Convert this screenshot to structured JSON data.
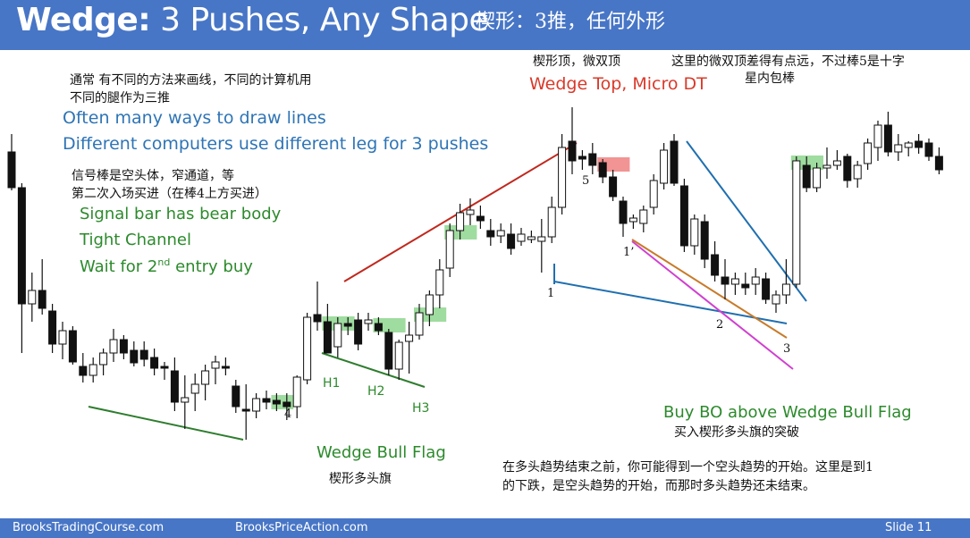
{
  "header": {
    "title_bold": "Wedge:",
    "title_rest": " 3 Pushes, Any Shape",
    "title_cn": "楔形：3推，任何外形"
  },
  "footer": {
    "left": "BrooksTradingCourse.com",
    "middle": "BrooksPriceAction.com",
    "slide": "Slide  11"
  },
  "notes": {
    "cn_lines_1": "通常 有不同的方法来画线，不同的计算机用",
    "cn_lines_2": "不同的腿作为三推",
    "en_lines_1": "Often many ways to draw lines",
    "en_lines_2": "Different computers use different leg for 3 pushes",
    "cn_signal_1": "信号棒是空头体，窄通道，等",
    "cn_signal_2": "第二次入场买进（在棒4上方买进）",
    "en_signal_1": "Signal bar has bear body",
    "en_signal_2": "Tight Channel",
    "en_signal_3_pre": "Wait for 2",
    "en_signal_3_sup": "nd",
    "en_signal_3_post": " entry buy",
    "cn_top": "楔形顶，微双顶",
    "en_top": "Wedge Top, Micro DT",
    "cn_far_1": "这里的微双顶差得有点远，不过棒5是十字",
    "cn_far_2": "星内包棒",
    "en_bullflag": "Wedge Bull Flag",
    "cn_bullflag": "楔形多头旗",
    "en_buybo": "Buy BO above Wedge Bull Flag",
    "cn_buybo": "买入楔形多头旗的突破",
    "cn_bottom_1": "在多头趋势结束之前，你可能得到一个空头趋势的开始。这里是到1",
    "cn_bottom_2": "的下跌，是空头趋势的开始，而那时多头趋势还未结束。"
  },
  "labels": {
    "h1": "H1",
    "h2": "H2",
    "h3": "H3",
    "n4": "4",
    "n5": "5",
    "n1": "1",
    "n1p": "1’",
    "n2": "2",
    "n3": "3"
  },
  "colors": {
    "header_bg": "#4876c6",
    "blue_text": "#2e74b5",
    "green_text": "#2c8a2c",
    "red_text": "#d93a2a",
    "bull_highlight": "#7fd07f",
    "bear_highlight": "#ee7070",
    "red_line": "#c0281e",
    "green_line": "#2e7d2e",
    "blue_line": "#1f6fb0",
    "orange_line": "#c87b2a",
    "magenta_line": "#d040d0"
  },
  "chart_data": {
    "type": "candlestick",
    "title": "Wedge: 3 Pushes, Any Shape",
    "price_bars": [
      {
        "o": 170,
        "h": 150,
        "l": 213,
        "c": 210
      },
      {
        "o": 210,
        "h": 205,
        "l": 395,
        "c": 340
      },
      {
        "o": 340,
        "h": 305,
        "l": 360,
        "c": 325
      },
      {
        "o": 325,
        "h": 290,
        "l": 352,
        "c": 345
      },
      {
        "o": 348,
        "h": 340,
        "l": 395,
        "c": 385
      },
      {
        "o": 385,
        "h": 360,
        "l": 402,
        "c": 370
      },
      {
        "o": 370,
        "h": 365,
        "l": 408,
        "c": 405
      },
      {
        "o": 410,
        "h": 395,
        "l": 428,
        "c": 420
      },
      {
        "o": 420,
        "h": 400,
        "l": 428,
        "c": 408
      },
      {
        "o": 408,
        "h": 390,
        "l": 420,
        "c": 395
      },
      {
        "o": 395,
        "h": 368,
        "l": 405,
        "c": 380
      },
      {
        "o": 380,
        "h": 375,
        "l": 402,
        "c": 395
      },
      {
        "o": 392,
        "h": 382,
        "l": 410,
        "c": 406
      },
      {
        "o": 392,
        "h": 382,
        "l": 410,
        "c": 402
      },
      {
        "o": 400,
        "h": 390,
        "l": 420,
        "c": 412
      },
      {
        "o": 410,
        "h": 405,
        "l": 425,
        "c": 412
      },
      {
        "o": 415,
        "h": 400,
        "l": 460,
        "c": 450
      },
      {
        "o": 450,
        "h": 420,
        "l": 480,
        "c": 445
      },
      {
        "o": 440,
        "h": 418,
        "l": 460,
        "c": 430
      },
      {
        "o": 430,
        "h": 408,
        "l": 448,
        "c": 415
      },
      {
        "o": 412,
        "h": 398,
        "l": 430,
        "c": 405
      },
      {
        "o": 410,
        "h": 400,
        "l": 420,
        "c": 412
      },
      {
        "o": 432,
        "h": 425,
        "l": 462,
        "c": 455
      },
      {
        "o": 458,
        "h": 430,
        "l": 492,
        "c": 460
      },
      {
        "o": 460,
        "h": 440,
        "l": 468,
        "c": 446
      },
      {
        "o": 446,
        "h": 437,
        "l": 458,
        "c": 450
      },
      {
        "o": 448,
        "h": 440,
        "l": 460,
        "c": 452
      },
      {
        "o": 450,
        "h": 440,
        "l": 470,
        "c": 455
      },
      {
        "o": 455,
        "h": 420,
        "l": 468,
        "c": 422
      },
      {
        "o": 425,
        "h": 350,
        "l": 430,
        "c": 355
      },
      {
        "o": 352,
        "h": 315,
        "l": 370,
        "c": 360
      },
      {
        "o": 360,
        "h": 340,
        "l": 395,
        "c": 395
      },
      {
        "o": 388,
        "h": 355,
        "l": 400,
        "c": 362
      },
      {
        "o": 362,
        "h": 355,
        "l": 375,
        "c": 365
      },
      {
        "o": 358,
        "h": 350,
        "l": 392,
        "c": 385
      },
      {
        "o": 362,
        "h": 350,
        "l": 370,
        "c": 358
      },
      {
        "o": 362,
        "h": 355,
        "l": 375,
        "c": 370
      },
      {
        "o": 372,
        "h": 368,
        "l": 420,
        "c": 413
      },
      {
        "o": 413,
        "h": 380,
        "l": 425,
        "c": 383
      },
      {
        "o": 382,
        "h": 360,
        "l": 418,
        "c": 375
      },
      {
        "o": 375,
        "h": 340,
        "l": 380,
        "c": 350
      },
      {
        "o": 352,
        "h": 325,
        "l": 365,
        "c": 330
      },
      {
        "o": 330,
        "h": 290,
        "l": 345,
        "c": 302
      },
      {
        "o": 300,
        "h": 250,
        "l": 310,
        "c": 258
      },
      {
        "o": 258,
        "h": 228,
        "l": 268,
        "c": 238
      },
      {
        "o": 240,
        "h": 222,
        "l": 252,
        "c": 235
      },
      {
        "o": 242,
        "h": 230,
        "l": 256,
        "c": 247
      },
      {
        "o": 258,
        "h": 245,
        "l": 275,
        "c": 265
      },
      {
        "o": 264,
        "h": 250,
        "l": 272,
        "c": 258
      },
      {
        "o": 262,
        "h": 250,
        "l": 285,
        "c": 278
      },
      {
        "o": 270,
        "h": 255,
        "l": 275,
        "c": 262
      },
      {
        "o": 268,
        "h": 258,
        "l": 272,
        "c": 265
      },
      {
        "o": 270,
        "h": 245,
        "l": 305,
        "c": 265
      },
      {
        "o": 265,
        "h": 220,
        "l": 272,
        "c": 232
      },
      {
        "o": 232,
        "h": 150,
        "l": 240,
        "c": 165
      },
      {
        "o": 158,
        "h": 120,
        "l": 195,
        "c": 180
      },
      {
        "o": 175,
        "h": 168,
        "l": 190,
        "c": 178
      },
      {
        "o": 172,
        "h": 160,
        "l": 195,
        "c": 185
      },
      {
        "o": 182,
        "h": 178,
        "l": 205,
        "c": 198
      },
      {
        "o": 198,
        "h": 190,
        "l": 225,
        "c": 220
      },
      {
        "o": 225,
        "h": 220,
        "l": 265,
        "c": 250
      },
      {
        "o": 248,
        "h": 240,
        "l": 256,
        "c": 244
      },
      {
        "o": 250,
        "h": 230,
        "l": 260,
        "c": 235
      },
      {
        "o": 232,
        "h": 195,
        "l": 240,
        "c": 202
      },
      {
        "o": 205,
        "h": 160,
        "l": 212,
        "c": 168
      },
      {
        "o": 158,
        "h": 150,
        "l": 208,
        "c": 205
      },
      {
        "o": 208,
        "h": 200,
        "l": 282,
        "c": 275
      },
      {
        "o": 275,
        "h": 240,
        "l": 285,
        "c": 245
      },
      {
        "o": 248,
        "h": 240,
        "l": 300,
        "c": 290
      },
      {
        "o": 285,
        "h": 270,
        "l": 315,
        "c": 308
      },
      {
        "o": 310,
        "h": 290,
        "l": 335,
        "c": 318
      },
      {
        "o": 318,
        "h": 305,
        "l": 330,
        "c": 312
      },
      {
        "o": 318,
        "h": 305,
        "l": 330,
        "c": 322
      },
      {
        "o": 318,
        "h": 300,
        "l": 330,
        "c": 310
      },
      {
        "o": 312,
        "h": 305,
        "l": 340,
        "c": 335
      },
      {
        "o": 340,
        "h": 325,
        "l": 350,
        "c": 330
      },
      {
        "o": 330,
        "h": 290,
        "l": 340,
        "c": 318
      },
      {
        "o": 318,
        "h": 175,
        "l": 322,
        "c": 180
      },
      {
        "o": 185,
        "h": 175,
        "l": 215,
        "c": 210
      },
      {
        "o": 210,
        "h": 182,
        "l": 215,
        "c": 188
      },
      {
        "o": 188,
        "h": 165,
        "l": 200,
        "c": 185
      },
      {
        "o": 185,
        "h": 168,
        "l": 190,
        "c": 180
      },
      {
        "o": 175,
        "h": 172,
        "l": 210,
        "c": 202
      },
      {
        "o": 200,
        "h": 180,
        "l": 210,
        "c": 185
      },
      {
        "o": 183,
        "h": 155,
        "l": 190,
        "c": 160
      },
      {
        "o": 165,
        "h": 135,
        "l": 180,
        "c": 140
      },
      {
        "o": 140,
        "h": 125,
        "l": 175,
        "c": 170
      },
      {
        "o": 170,
        "h": 150,
        "l": 180,
        "c": 162
      },
      {
        "o": 165,
        "h": 158,
        "l": 175,
        "c": 160
      },
      {
        "o": 158,
        "h": 150,
        "l": 172,
        "c": 165
      },
      {
        "o": 160,
        "h": 155,
        "l": 180,
        "c": 175
      },
      {
        "o": 175,
        "h": 165,
        "l": 195,
        "c": 190
      }
    ]
  }
}
